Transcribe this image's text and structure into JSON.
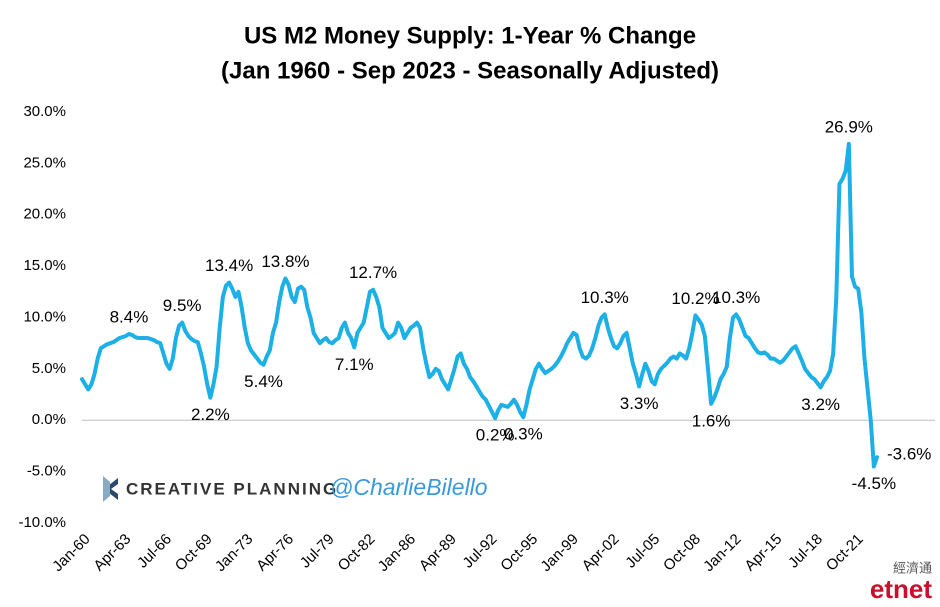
{
  "chart_data": {
    "type": "line",
    "title": "US M2 Money Supply: 1-Year % Change",
    "subtitle": "(Jan 1960 - Sep 2023 - Seasonally Adjusted)",
    "color": "#1cb0e6",
    "grid": false,
    "ylim": [
      -10,
      30
    ],
    "yticks": [
      {
        "value": -10,
        "label": "-10.0%"
      },
      {
        "value": -5,
        "label": "-5.0%"
      },
      {
        "value": 0,
        "label": "0.0%"
      },
      {
        "value": 5,
        "label": "5.0%"
      },
      {
        "value": 10,
        "label": "10.0%"
      },
      {
        "value": 15,
        "label": "15.0%"
      },
      {
        "value": 20,
        "label": "20.0%"
      },
      {
        "value": 25,
        "label": "25.0%"
      },
      {
        "value": 30,
        "label": "30.0%"
      }
    ],
    "categories": [
      "Jan-60",
      null,
      null,
      null,
      null,
      null,
      null,
      null,
      null,
      null,
      null,
      null,
      null,
      "Apr-63",
      null,
      null,
      null,
      null,
      null,
      null,
      null,
      null,
      null,
      null,
      null,
      null,
      "Jul-66",
      null,
      null,
      null,
      null,
      null,
      null,
      null,
      null,
      null,
      null,
      null,
      null,
      "Oct-69",
      null,
      null,
      null,
      null,
      null,
      null,
      null,
      null,
      null,
      null,
      null,
      null,
      "Jan-73",
      null,
      null,
      null,
      null,
      null,
      null,
      null,
      null,
      null,
      null,
      null,
      null,
      "Apr-76",
      null,
      null,
      null,
      null,
      null,
      null,
      null,
      null,
      null,
      null,
      null,
      null,
      "Jul-79",
      null,
      null,
      null,
      null,
      null,
      null,
      null,
      null,
      null,
      null,
      null,
      null,
      "Oct-82",
      null,
      null,
      null,
      null,
      null,
      null,
      null,
      null,
      null,
      null,
      null,
      null,
      "Jan-86",
      null,
      null,
      null,
      null,
      null,
      null,
      null,
      null,
      null,
      null,
      null,
      null,
      "Apr-89",
      null,
      null,
      null,
      null,
      null,
      null,
      null,
      null,
      null,
      null,
      null,
      null,
      "Jul-92",
      null,
      null,
      null,
      null,
      null,
      null,
      null,
      null,
      null,
      null,
      null,
      null,
      "Oct-95",
      null,
      null,
      null,
      null,
      null,
      null,
      null,
      null,
      null,
      null,
      null,
      null,
      "Jan-99",
      null,
      null,
      null,
      null,
      null,
      null,
      null,
      null,
      null,
      null,
      null,
      null,
      "Apr-02",
      null,
      null,
      null,
      null,
      null,
      null,
      null,
      null,
      null,
      null,
      null,
      null,
      "Jul-05",
      null,
      null,
      null,
      null,
      null,
      null,
      null,
      null,
      null,
      null,
      null,
      null,
      "Oct-08",
      null,
      null,
      null,
      null,
      null,
      null,
      null,
      null,
      null,
      null,
      null,
      null,
      "Jan-12",
      null,
      null,
      null,
      null,
      null,
      null,
      null,
      null,
      null,
      null,
      null,
      null,
      "Apr-15",
      null,
      null,
      null,
      null,
      null,
      null,
      null,
      null,
      null,
      null,
      null,
      null,
      "Jul-18",
      null,
      null,
      null,
      null,
      null,
      null,
      null,
      null,
      null,
      null,
      null,
      null,
      "Oct-21",
      null,
      null,
      null,
      null,
      null,
      null,
      null
    ],
    "values": [
      4,
      3.5,
      3,
      3.5,
      4.5,
      6,
      7,
      7.2,
      7.4,
      7.5,
      7.6,
      7.8,
      8,
      8.1,
      8.2,
      8.4,
      8.3,
      8.1,
      8,
      8,
      8,
      8,
      7.9,
      7.8,
      7.6,
      7.5,
      6.5,
      5.5,
      5,
      6,
      8,
      9.2,
      9.5,
      8.7,
      8.2,
      7.9,
      7.7,
      7.6,
      6.5,
      5.2,
      3.5,
      2.2,
      3.5,
      5.2,
      9,
      12,
      13.1,
      13.4,
      12.8,
      12,
      12.5,
      11,
      9,
      7.5,
      6.8,
      6.4,
      6,
      5.6,
      5.4,
      6.2,
      6.8,
      8.5,
      9.5,
      11.5,
      13,
      13.8,
      13.2,
      12,
      11.5,
      12.8,
      13,
      12.7,
      11,
      10,
      8.5,
      8,
      7.5,
      7.8,
      8,
      7.6,
      7.5,
      7.8,
      8,
      9,
      9.5,
      8.5,
      8,
      7.1,
      8.5,
      9,
      9.5,
      11,
      12.5,
      12.7,
      12,
      11,
      9,
      8.5,
      8,
      8.2,
      8.5,
      9.5,
      9,
      8,
      8.5,
      9,
      9.2,
      9.5,
      9,
      7,
      5.5,
      4.2,
      4.5,
      5,
      4.8,
      4,
      3.5,
      3,
      4,
      5,
      6.2,
      6.5,
      5.5,
      5,
      4.2,
      3.8,
      3.3,
      2.8,
      2.3,
      2,
      1.4,
      0.8,
      0.2,
      1,
      1.5,
      1.4,
      1.3,
      1.6,
      2,
      1.5,
      0.8,
      0.3,
      1.5,
      3,
      4,
      5,
      5.5,
      5,
      4.6,
      4.8,
      5,
      5.3,
      5.7,
      6.2,
      6.8,
      7.5,
      8,
      8.5,
      8.3,
      7,
      6.2,
      6,
      6.3,
      7,
      8,
      9.2,
      10,
      10.3,
      9,
      8,
      7.2,
      7,
      7.5,
      8.2,
      8.5,
      7,
      5.5,
      4.5,
      3.3,
      4.5,
      5.5,
      4.8,
      3.8,
      3.5,
      4.5,
      5,
      5.3,
      5.6,
      6,
      6.2,
      6,
      6.5,
      6.3,
      6,
      7,
      8.5,
      10.2,
      9.8,
      9.3,
      8.2,
      5,
      1.6,
      2.2,
      3,
      4,
      4.5,
      5.2,
      8,
      10,
      10.3,
      9.8,
      9,
      8.2,
      8,
      7.5,
      7,
      6.6,
      6.5,
      6.6,
      6.4,
      6,
      6,
      5.8,
      5.6,
      5.8,
      6.2,
      6.6,
      7,
      7.2,
      6.5,
      5.8,
      5,
      4.6,
      4.2,
      4,
      3.6,
      3.2,
      3.8,
      4.2,
      4.8,
      6.5,
      12,
      23,
      23.5,
      24.3,
      26.9,
      14,
      13,
      12.8,
      10.5,
      6,
      3,
      0,
      -4.5,
      -3.6
    ],
    "value_labels": [
      null,
      null,
      null,
      null,
      null,
      null,
      null,
      null,
      null,
      null,
      null,
      null,
      null,
      null,
      null,
      "8.4%",
      null,
      null,
      null,
      null,
      null,
      null,
      null,
      null,
      null,
      null,
      null,
      null,
      null,
      null,
      null,
      null,
      "9.5%",
      null,
      null,
      null,
      null,
      null,
      null,
      null,
      null,
      "2.2%",
      null,
      null,
      null,
      null,
      null,
      "13.4%",
      null,
      null,
      null,
      null,
      null,
      null,
      null,
      null,
      null,
      null,
      "5.4%",
      null,
      null,
      null,
      null,
      null,
      null,
      "13.8%",
      null,
      null,
      null,
      null,
      null,
      null,
      null,
      null,
      null,
      null,
      null,
      null,
      null,
      null,
      null,
      null,
      null,
      null,
      null,
      null,
      null,
      "7.1%",
      null,
      null,
      null,
      null,
      null,
      "12.7%",
      null,
      null,
      null,
      null,
      null,
      null,
      null,
      null,
      null,
      null,
      null,
      null,
      null,
      null,
      null,
      null,
      null,
      null,
      null,
      null,
      null,
      null,
      null,
      null,
      null,
      null,
      null,
      null,
      null,
      null,
      null,
      null,
      null,
      null,
      null,
      null,
      null,
      null,
      "0.2%",
      null,
      null,
      null,
      null,
      null,
      null,
      null,
      null,
      "0.3%",
      null,
      null,
      null,
      null,
      null,
      null,
      null,
      null,
      null,
      null,
      null,
      null,
      null,
      null,
      null,
      null,
      null,
      null,
      null,
      null,
      null,
      null,
      null,
      null,
      null,
      "10.3%",
      null,
      null,
      null,
      null,
      null,
      null,
      null,
      null,
      null,
      null,
      "3.3%",
      null,
      null,
      null,
      null,
      null,
      null,
      null,
      null,
      null,
      null,
      null,
      null,
      null,
      null,
      null,
      null,
      null,
      "10.2%",
      null,
      null,
      null,
      null,
      "1.6%",
      null,
      null,
      null,
      null,
      null,
      null,
      null,
      "10.3%",
      null,
      null,
      null,
      null,
      null,
      null,
      null,
      null,
      null,
      null,
      null,
      null,
      null,
      null,
      null,
      null,
      null,
      null,
      null,
      null,
      null,
      null,
      null,
      null,
      null,
      null,
      "3.2%",
      null,
      null,
      null,
      null,
      null,
      null,
      null,
      null,
      "26.9%",
      null,
      null,
      null,
      null,
      null,
      null,
      null,
      "-4.5%",
      "-3.6%"
    ]
  },
  "branding": {
    "firm": "CREATIVE PLANNING",
    "handle": "@CharlieBilello",
    "source_chinese": "經濟通",
    "source": "etnet"
  }
}
